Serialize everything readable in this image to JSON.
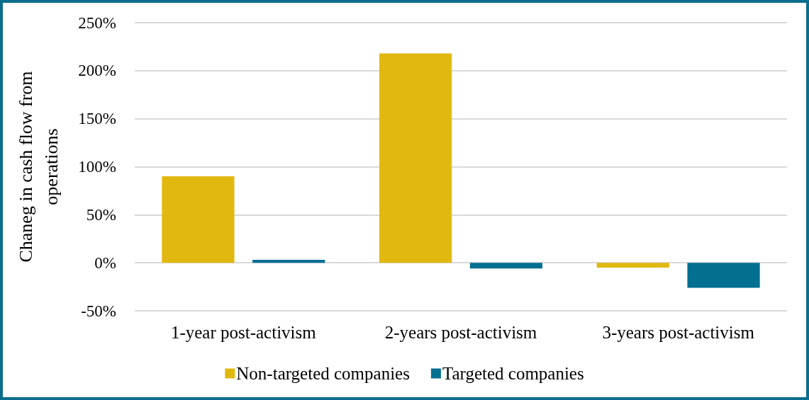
{
  "chart_data": {
    "type": "bar",
    "ylabel": "Chaneg in cash flow from operations",
    "categories": [
      "1-year post-activism",
      "2-years post-activism",
      "3-years post-activism"
    ],
    "series": [
      {
        "name": "Non-targeted companies",
        "color": "#e1b80f",
        "values": [
          90,
          218,
          -5
        ]
      },
      {
        "name": "Targeted companies",
        "color": "#036f91",
        "values": [
          3,
          -6,
          -26
        ]
      }
    ],
    "ylim": [
      -50,
      250
    ],
    "yticks": [
      {
        "value": -50,
        "label": "-50%"
      },
      {
        "value": 0,
        "label": "0%"
      },
      {
        "value": 50,
        "label": "50%"
      },
      {
        "value": 100,
        "label": "100%"
      },
      {
        "value": 150,
        "label": "150%"
      },
      {
        "value": 200,
        "label": "200%"
      },
      {
        "value": 250,
        "label": "250%"
      }
    ],
    "grid": "y",
    "legend": "bottom"
  }
}
